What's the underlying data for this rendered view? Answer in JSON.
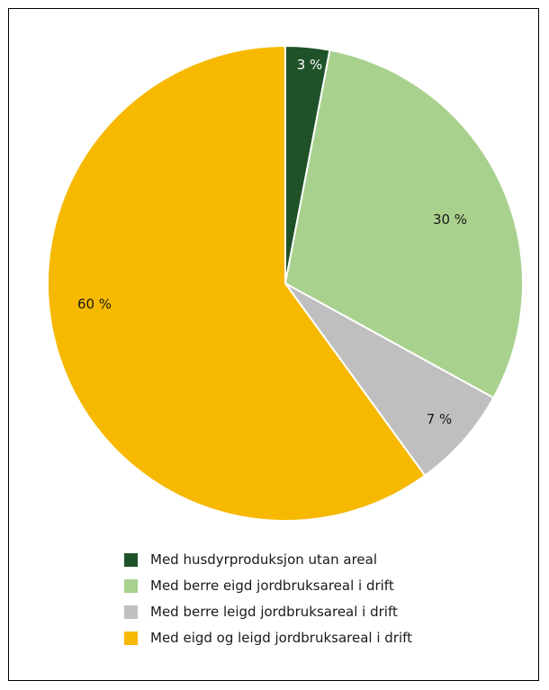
{
  "chart_data": {
    "type": "pie",
    "title": "",
    "start_angle_deg": 0,
    "direction": "clockwise",
    "slices": [
      {
        "label": "Med husdyrproduksjon utan areal",
        "value": 3,
        "value_label": "3 %",
        "color": "#1f5228",
        "label_color": "#ffffff"
      },
      {
        "label": "Med berre eigd jordbruksareal i drift",
        "value": 30,
        "value_label": "30 %",
        "color": "#a9d18e",
        "label_color": "#1a1a1a"
      },
      {
        "label": "Med berre leigd jordbruksareal i drift",
        "value": 7,
        "value_label": "7 %",
        "color": "#bfbfbf",
        "label_color": "#1a1a1a"
      },
      {
        "label": "Med eigd og leigd jordbruksareal i drift",
        "value": 60,
        "value_label": "60 %",
        "color": "#f6b900",
        "label_color": "#1a1a1a"
      }
    ],
    "legend_position": "bottom"
  }
}
